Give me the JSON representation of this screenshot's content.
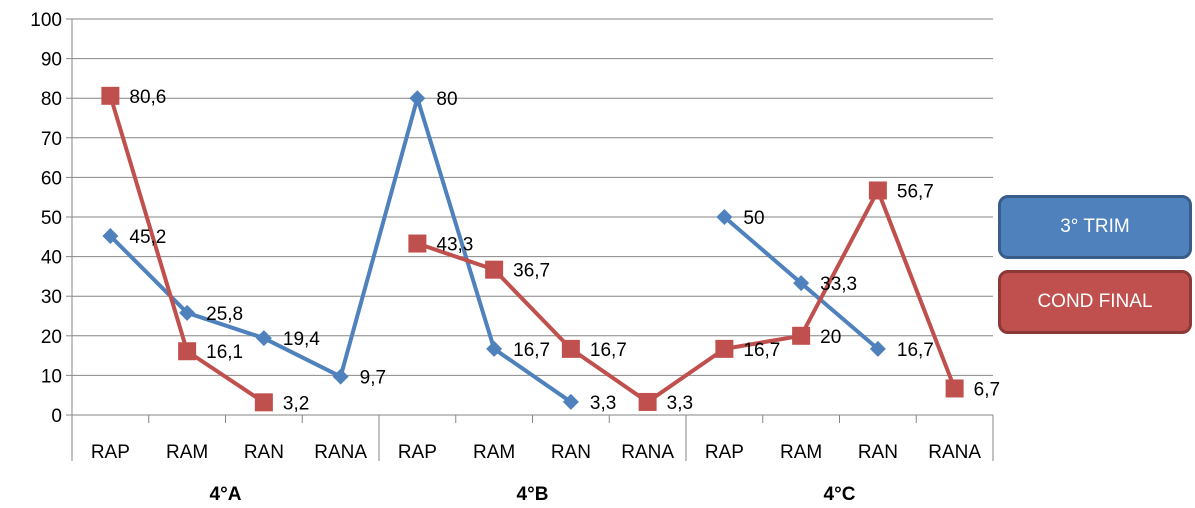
{
  "chart_data": {
    "type": "line",
    "groups": [
      {
        "label": "4°A",
        "categories": [
          "RAP",
          "RAM",
          "RAN",
          "RANA"
        ]
      },
      {
        "label": "4°B",
        "categories": [
          "RAP",
          "RAM",
          "RAN",
          "RANA"
        ]
      },
      {
        "label": "4°C",
        "categories": [
          "RAP",
          "RAM",
          "RAN",
          "RANA"
        ]
      }
    ],
    "categories": [
      "RAP",
      "RAM",
      "RAN",
      "RANA",
      "RAP",
      "RAM",
      "RAN",
      "RANA",
      "RAP",
      "RAM",
      "RAN",
      "RANA"
    ],
    "ylim": [
      0,
      100
    ],
    "yticks": [
      0,
      10,
      20,
      30,
      40,
      50,
      60,
      70,
      80,
      90,
      100
    ],
    "grid": true,
    "legend_position": "right",
    "series": [
      {
        "name": "3° TRIM",
        "color": "#4f81bd",
        "marker": "diamond",
        "values": [
          45.2,
          25.8,
          19.4,
          9.7,
          80,
          16.7,
          3.3,
          null,
          50,
          33.3,
          16.7,
          null
        ],
        "labels": [
          "45,2",
          "25,8",
          "19,4",
          "9,7",
          "80",
          "16,7",
          "3,3",
          null,
          "50",
          "33,3",
          "16,7",
          null
        ]
      },
      {
        "name": "COND FINAL",
        "color": "#c0504d",
        "marker": "square",
        "values": [
          80.6,
          16.1,
          3.2,
          null,
          43.3,
          36.7,
          16.7,
          3.3,
          16.7,
          20,
          56.7,
          6.7
        ],
        "labels": [
          "80,6",
          "16,1",
          "3,2",
          null,
          "43,3",
          "36,7",
          "16,7",
          "3,3",
          "16,7",
          "20",
          "56,7",
          "6,7"
        ]
      }
    ]
  }
}
